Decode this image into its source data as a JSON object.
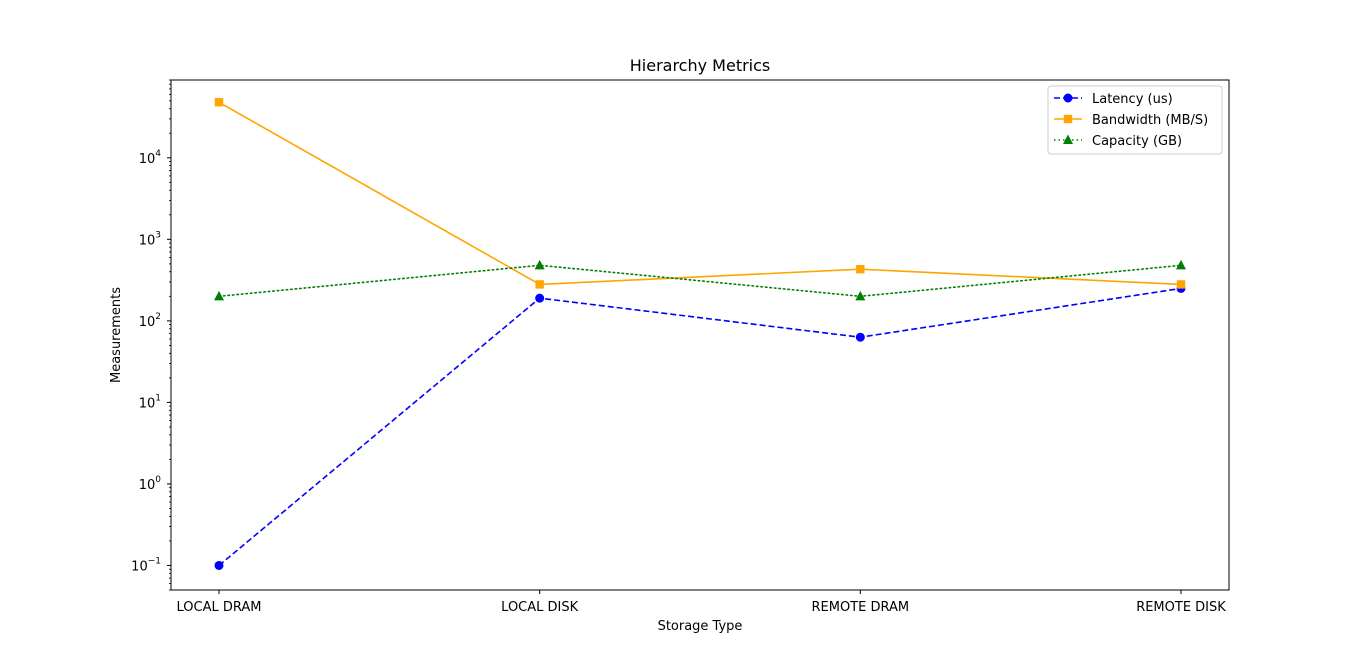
{
  "chart_data": {
    "type": "line",
    "title": "Hierarchy Metrics",
    "xlabel": "Storage Type",
    "ylabel": "Measurements",
    "yscale": "log",
    "ylim": [
      0.05,
      90000
    ],
    "categories": [
      "LOCAL DRAM",
      "LOCAL DISK",
      "REMOTE DRAM",
      "REMOTE DISK"
    ],
    "y_ticks": [
      {
        "value": 0.1,
        "base": "10",
        "exp": "−1"
      },
      {
        "value": 1,
        "base": "10",
        "exp": "0"
      },
      {
        "value": 10,
        "base": "10",
        "exp": "1"
      },
      {
        "value": 100,
        "base": "10",
        "exp": "2"
      },
      {
        "value": 1000,
        "base": "10",
        "exp": "3"
      },
      {
        "value": 10000,
        "base": "10",
        "exp": "4"
      }
    ],
    "legend": {
      "position": "upper-right"
    },
    "grid": false,
    "series": [
      {
        "name": "Latency (us)",
        "values": [
          0.1,
          190,
          63,
          250
        ],
        "color": "#0000ff",
        "dash": "dashed",
        "marker": "circle"
      },
      {
        "name": "Bandwidth (MB/S)",
        "values": [
          48000,
          280,
          430,
          280
        ],
        "color": "#ffa500",
        "dash": "solid",
        "marker": "square"
      },
      {
        "name": "Capacity (GB)",
        "values": [
          200,
          480,
          200,
          480
        ],
        "color": "#008000",
        "dash": "dotted",
        "marker": "triangle"
      }
    ]
  }
}
